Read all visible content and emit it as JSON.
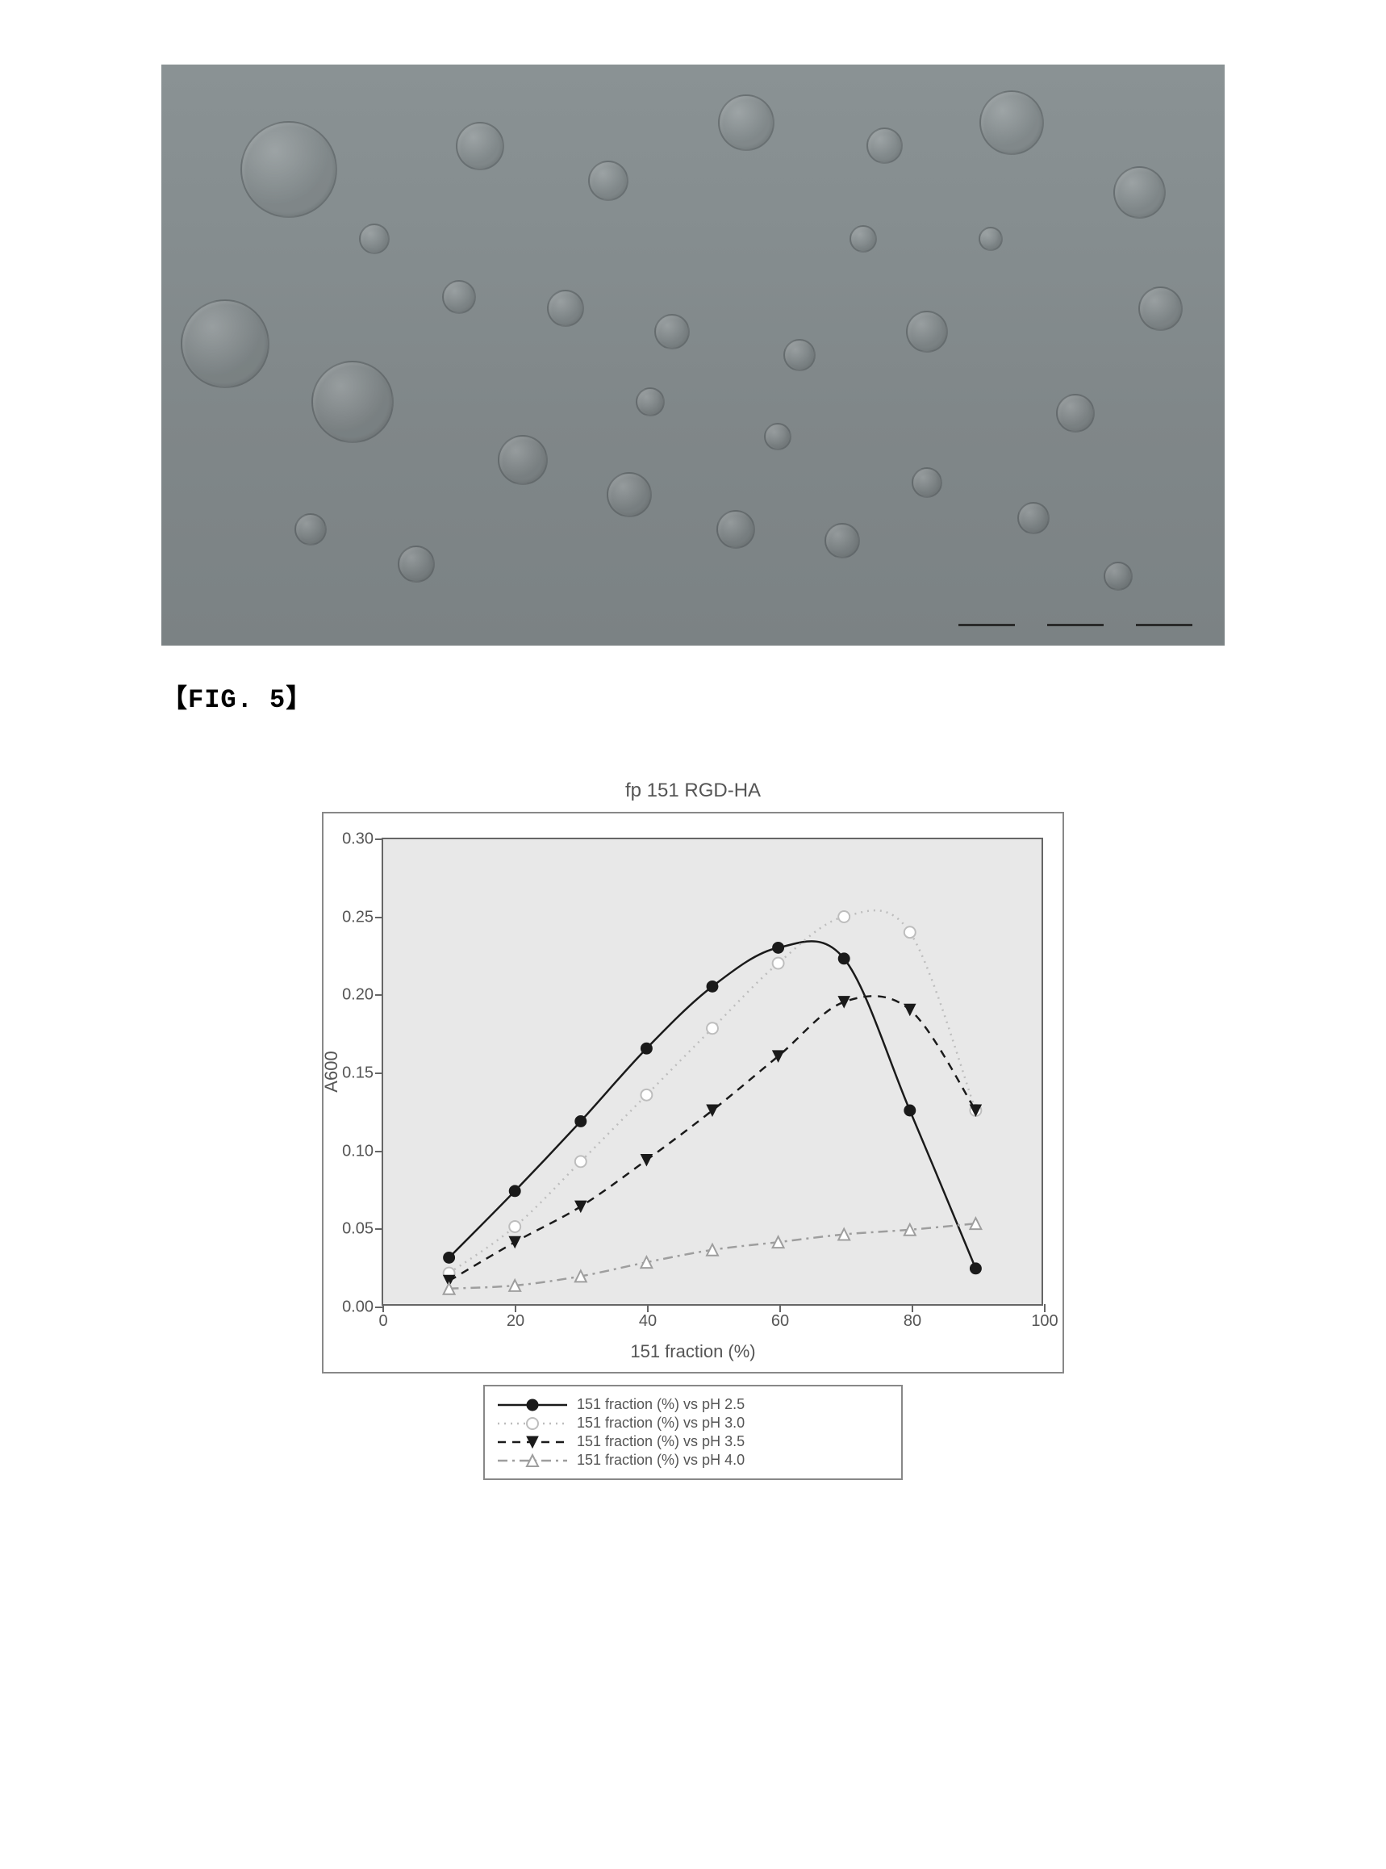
{
  "figure_label": "【FIG. 5】",
  "micrograph": {
    "background_gradient": [
      "#8a9294",
      "#7b8284"
    ],
    "scalebar_segments": 3,
    "bubbles": [
      {
        "cx_pct": 12,
        "cy_pct": 18,
        "d": 120
      },
      {
        "cx_pct": 6,
        "cy_pct": 48,
        "d": 110
      },
      {
        "cx_pct": 18,
        "cy_pct": 58,
        "d": 102
      },
      {
        "cx_pct": 30,
        "cy_pct": 14,
        "d": 60
      },
      {
        "cx_pct": 42,
        "cy_pct": 20,
        "d": 50
      },
      {
        "cx_pct": 55,
        "cy_pct": 10,
        "d": 70
      },
      {
        "cx_pct": 68,
        "cy_pct": 14,
        "d": 45
      },
      {
        "cx_pct": 80,
        "cy_pct": 10,
        "d": 80
      },
      {
        "cx_pct": 92,
        "cy_pct": 22,
        "d": 65
      },
      {
        "cx_pct": 94,
        "cy_pct": 42,
        "d": 55
      },
      {
        "cx_pct": 86,
        "cy_pct": 60,
        "d": 48
      },
      {
        "cx_pct": 72,
        "cy_pct": 46,
        "d": 52
      },
      {
        "cx_pct": 60,
        "cy_pct": 50,
        "d": 40
      },
      {
        "cx_pct": 48,
        "cy_pct": 46,
        "d": 44
      },
      {
        "cx_pct": 38,
        "cy_pct": 42,
        "d": 46
      },
      {
        "cx_pct": 28,
        "cy_pct": 40,
        "d": 42
      },
      {
        "cx_pct": 34,
        "cy_pct": 68,
        "d": 62
      },
      {
        "cx_pct": 44,
        "cy_pct": 74,
        "d": 56
      },
      {
        "cx_pct": 54,
        "cy_pct": 80,
        "d": 48
      },
      {
        "cx_pct": 64,
        "cy_pct": 82,
        "d": 44
      },
      {
        "cx_pct": 24,
        "cy_pct": 86,
        "d": 46
      },
      {
        "cx_pct": 14,
        "cy_pct": 80,
        "d": 40
      },
      {
        "cx_pct": 72,
        "cy_pct": 72,
        "d": 38
      },
      {
        "cx_pct": 82,
        "cy_pct": 78,
        "d": 40
      },
      {
        "cx_pct": 90,
        "cy_pct": 88,
        "d": 36
      },
      {
        "cx_pct": 46,
        "cy_pct": 58,
        "d": 36
      },
      {
        "cx_pct": 58,
        "cy_pct": 64,
        "d": 34
      },
      {
        "cx_pct": 20,
        "cy_pct": 30,
        "d": 38
      },
      {
        "cx_pct": 66,
        "cy_pct": 30,
        "d": 34
      },
      {
        "cx_pct": 78,
        "cy_pct": 30,
        "d": 30
      }
    ]
  },
  "chart": {
    "type": "line",
    "title": "fp 151 RGD-HA",
    "xlabel": "151 fraction (%)",
    "ylabel": "A600",
    "xlim": [
      0,
      100
    ],
    "xtick_step": 20,
    "ylim": [
      0.0,
      0.3
    ],
    "ytick_step": 0.05,
    "y_decimals": 2,
    "plot_bg": "#e8e8e8",
    "frame_color": "#666666",
    "tick_fontsize": 20,
    "label_fontsize": 22,
    "title_fontsize": 24,
    "line_width": 2.5,
    "marker_size": 7,
    "series": [
      {
        "label": "151 fraction (%) vs pH 2.5",
        "color": "#1a1a1a",
        "dash": "solid",
        "marker": "circle-filled",
        "x": [
          10,
          20,
          30,
          40,
          50,
          60,
          70,
          80,
          90
        ],
        "y": [
          0.03,
          0.073,
          0.118,
          0.165,
          0.205,
          0.23,
          0.223,
          0.125,
          0.023
        ]
      },
      {
        "label": "151 fraction (%) vs pH 3.0",
        "color": "#bdbdbd",
        "dash": "dotted",
        "marker": "circle-open",
        "x": [
          10,
          20,
          30,
          40,
          50,
          60,
          70,
          80,
          90
        ],
        "y": [
          0.02,
          0.05,
          0.092,
          0.135,
          0.178,
          0.22,
          0.25,
          0.24,
          0.125
        ]
      },
      {
        "label": "151 fraction (%) vs pH 3.5",
        "color": "#1a1a1a",
        "dash": "dashed",
        "marker": "triangle-down-filled",
        "x": [
          10,
          20,
          30,
          40,
          50,
          60,
          70,
          80,
          90
        ],
        "y": [
          0.015,
          0.04,
          0.063,
          0.093,
          0.125,
          0.16,
          0.195,
          0.19,
          0.125
        ]
      },
      {
        "label": "151 fraction (%) vs pH 4.0",
        "color": "#9e9e9e",
        "dash": "dash-dot",
        "marker": "triangle-up-open",
        "x": [
          10,
          20,
          30,
          40,
          50,
          60,
          70,
          80,
          90
        ],
        "y": [
          0.01,
          0.012,
          0.018,
          0.027,
          0.035,
          0.04,
          0.045,
          0.048,
          0.052
        ]
      }
    ]
  }
}
